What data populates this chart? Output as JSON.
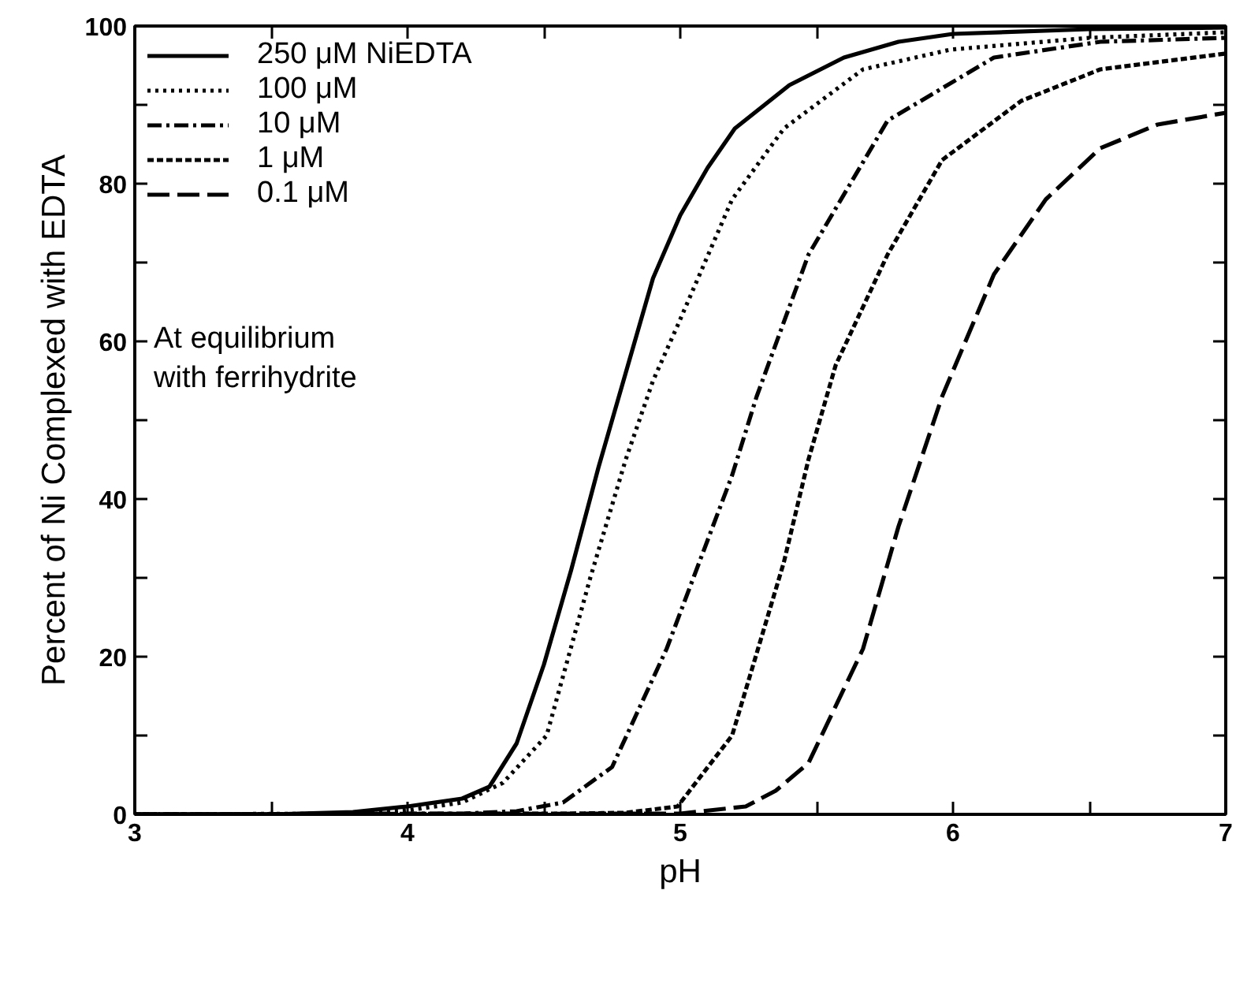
{
  "chart_data": {
    "type": "line",
    "xlabel": "pH",
    "ylabel": "Percent of Ni Complexed with EDTA",
    "xlim": [
      3,
      7
    ],
    "ylim": [
      0,
      100
    ],
    "xticks": [
      3,
      {
        "value": 3.5,
        "label": null
      },
      4,
      {
        "value": 4.5,
        "label": null
      },
      5,
      {
        "value": 5.5,
        "label": null
      },
      6,
      {
        "value": 6.5,
        "label": null
      },
      7
    ],
    "yticks": [
      0,
      {
        "value": 10,
        "label": null
      },
      20,
      {
        "value": 30,
        "label": null
      },
      40,
      {
        "value": 50,
        "label": null
      },
      60,
      {
        "value": 70,
        "label": null
      },
      80,
      {
        "value": 90,
        "label": null
      },
      100
    ],
    "grid": false,
    "legend": "top left",
    "marker": "none",
    "annotations": [
      "At equilibrium\nwith ferrihydrite"
    ],
    "series": [
      {
        "name": "250 μM NiEDTA",
        "color": "#000000",
        "line_style": "solid",
        "x": [
          3,
          3.5,
          3.8,
          4.0,
          4.2,
          4.3,
          4.4,
          4.5,
          4.6,
          4.7,
          4.8,
          4.9,
          5.0,
          5.1,
          5.2,
          5.4,
          5.6,
          5.8,
          6.0,
          6.5,
          7
        ],
        "values": [
          0,
          0,
          0.3,
          1,
          2,
          3.5,
          9,
          19,
          31,
          44,
          56,
          68,
          76,
          82,
          87,
          92.5,
          96,
          98,
          99,
          99.6,
          99.8
        ]
      },
      {
        "name": "100 μM",
        "color": "#000000",
        "line_style": "dotted",
        "x": [
          3,
          3.8,
          4.0,
          4.2,
          4.35,
          4.51,
          4.67,
          4.8,
          4.9,
          4.99,
          5.19,
          5.38,
          5.67,
          5.99,
          6.5,
          7
        ],
        "values": [
          0,
          0.1,
          0.5,
          1.5,
          4,
          10,
          30,
          45,
          55,
          62,
          78,
          87,
          94.5,
          97,
          98.5,
          99.2
        ]
      },
      {
        "name": "10 μM",
        "color": "#000000",
        "line_style": "dashdot",
        "x": [
          3,
          4.2,
          4.4,
          4.57,
          4.75,
          4.95,
          5.19,
          5.28,
          5.47,
          5.76,
          6.15,
          6.54,
          7
        ],
        "values": [
          0,
          0.1,
          0.4,
          1.5,
          6,
          21,
          43,
          53,
          71,
          88,
          96,
          98,
          98.5
        ]
      },
      {
        "name": "1 μM",
        "color": "#000000",
        "line_style": "dashed",
        "x": [
          3,
          4.6,
          4.8,
          4.99,
          5.19,
          5.38,
          5.47,
          5.57,
          5.76,
          5.96,
          6.25,
          6.54,
          7
        ],
        "values": [
          0,
          0.1,
          0.2,
          1,
          10,
          32,
          45,
          57,
          71,
          83,
          90.5,
          94.5,
          96.5
        ]
      },
      {
        "name": "0.1 μM",
        "color": "#000000",
        "line_style": "longdash",
        "x": [
          3,
          5.0,
          5.24,
          5.35,
          5.47,
          5.67,
          5.8,
          5.96,
          6.15,
          6.34,
          6.54,
          6.75,
          7
        ],
        "values": [
          0,
          0.1,
          1,
          3,
          6.5,
          21,
          36.5,
          53,
          68.5,
          78,
          84.5,
          87.5,
          89
        ]
      }
    ]
  }
}
